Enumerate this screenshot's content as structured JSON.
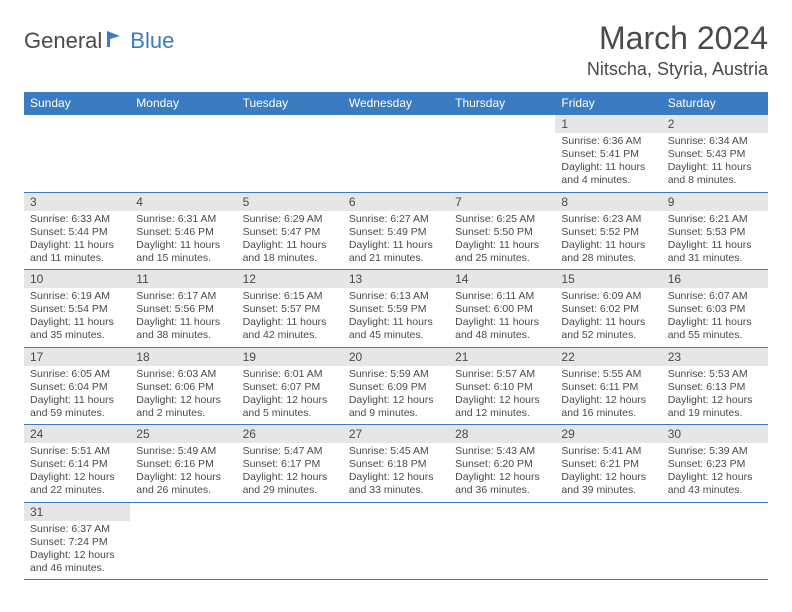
{
  "logo": {
    "general": "General",
    "blue": "Blue"
  },
  "title": "March 2024",
  "location": "Nitscha, Styria, Austria",
  "colors": {
    "header_bg": "#3b7bbf",
    "daynum_bg": "#e6e6e6",
    "text": "#4a4a4a",
    "border": "#3b7bbf"
  },
  "daynames": [
    "Sunday",
    "Monday",
    "Tuesday",
    "Wednesday",
    "Thursday",
    "Friday",
    "Saturday"
  ],
  "weeks": [
    [
      null,
      null,
      null,
      null,
      null,
      {
        "n": "1",
        "sr": "Sunrise: 6:36 AM",
        "ss": "Sunset: 5:41 PM",
        "dl": "Daylight: 11 hours and 4 minutes."
      },
      {
        "n": "2",
        "sr": "Sunrise: 6:34 AM",
        "ss": "Sunset: 5:43 PM",
        "dl": "Daylight: 11 hours and 8 minutes."
      }
    ],
    [
      {
        "n": "3",
        "sr": "Sunrise: 6:33 AM",
        "ss": "Sunset: 5:44 PM",
        "dl": "Daylight: 11 hours and 11 minutes."
      },
      {
        "n": "4",
        "sr": "Sunrise: 6:31 AM",
        "ss": "Sunset: 5:46 PM",
        "dl": "Daylight: 11 hours and 15 minutes."
      },
      {
        "n": "5",
        "sr": "Sunrise: 6:29 AM",
        "ss": "Sunset: 5:47 PM",
        "dl": "Daylight: 11 hours and 18 minutes."
      },
      {
        "n": "6",
        "sr": "Sunrise: 6:27 AM",
        "ss": "Sunset: 5:49 PM",
        "dl": "Daylight: 11 hours and 21 minutes."
      },
      {
        "n": "7",
        "sr": "Sunrise: 6:25 AM",
        "ss": "Sunset: 5:50 PM",
        "dl": "Daylight: 11 hours and 25 minutes."
      },
      {
        "n": "8",
        "sr": "Sunrise: 6:23 AM",
        "ss": "Sunset: 5:52 PM",
        "dl": "Daylight: 11 hours and 28 minutes."
      },
      {
        "n": "9",
        "sr": "Sunrise: 6:21 AM",
        "ss": "Sunset: 5:53 PM",
        "dl": "Daylight: 11 hours and 31 minutes."
      }
    ],
    [
      {
        "n": "10",
        "sr": "Sunrise: 6:19 AM",
        "ss": "Sunset: 5:54 PM",
        "dl": "Daylight: 11 hours and 35 minutes."
      },
      {
        "n": "11",
        "sr": "Sunrise: 6:17 AM",
        "ss": "Sunset: 5:56 PM",
        "dl": "Daylight: 11 hours and 38 minutes."
      },
      {
        "n": "12",
        "sr": "Sunrise: 6:15 AM",
        "ss": "Sunset: 5:57 PM",
        "dl": "Daylight: 11 hours and 42 minutes."
      },
      {
        "n": "13",
        "sr": "Sunrise: 6:13 AM",
        "ss": "Sunset: 5:59 PM",
        "dl": "Daylight: 11 hours and 45 minutes."
      },
      {
        "n": "14",
        "sr": "Sunrise: 6:11 AM",
        "ss": "Sunset: 6:00 PM",
        "dl": "Daylight: 11 hours and 48 minutes."
      },
      {
        "n": "15",
        "sr": "Sunrise: 6:09 AM",
        "ss": "Sunset: 6:02 PM",
        "dl": "Daylight: 11 hours and 52 minutes."
      },
      {
        "n": "16",
        "sr": "Sunrise: 6:07 AM",
        "ss": "Sunset: 6:03 PM",
        "dl": "Daylight: 11 hours and 55 minutes."
      }
    ],
    [
      {
        "n": "17",
        "sr": "Sunrise: 6:05 AM",
        "ss": "Sunset: 6:04 PM",
        "dl": "Daylight: 11 hours and 59 minutes."
      },
      {
        "n": "18",
        "sr": "Sunrise: 6:03 AM",
        "ss": "Sunset: 6:06 PM",
        "dl": "Daylight: 12 hours and 2 minutes."
      },
      {
        "n": "19",
        "sr": "Sunrise: 6:01 AM",
        "ss": "Sunset: 6:07 PM",
        "dl": "Daylight: 12 hours and 5 minutes."
      },
      {
        "n": "20",
        "sr": "Sunrise: 5:59 AM",
        "ss": "Sunset: 6:09 PM",
        "dl": "Daylight: 12 hours and 9 minutes."
      },
      {
        "n": "21",
        "sr": "Sunrise: 5:57 AM",
        "ss": "Sunset: 6:10 PM",
        "dl": "Daylight: 12 hours and 12 minutes."
      },
      {
        "n": "22",
        "sr": "Sunrise: 5:55 AM",
        "ss": "Sunset: 6:11 PM",
        "dl": "Daylight: 12 hours and 16 minutes."
      },
      {
        "n": "23",
        "sr": "Sunrise: 5:53 AM",
        "ss": "Sunset: 6:13 PM",
        "dl": "Daylight: 12 hours and 19 minutes."
      }
    ],
    [
      {
        "n": "24",
        "sr": "Sunrise: 5:51 AM",
        "ss": "Sunset: 6:14 PM",
        "dl": "Daylight: 12 hours and 22 minutes."
      },
      {
        "n": "25",
        "sr": "Sunrise: 5:49 AM",
        "ss": "Sunset: 6:16 PM",
        "dl": "Daylight: 12 hours and 26 minutes."
      },
      {
        "n": "26",
        "sr": "Sunrise: 5:47 AM",
        "ss": "Sunset: 6:17 PM",
        "dl": "Daylight: 12 hours and 29 minutes."
      },
      {
        "n": "27",
        "sr": "Sunrise: 5:45 AM",
        "ss": "Sunset: 6:18 PM",
        "dl": "Daylight: 12 hours and 33 minutes."
      },
      {
        "n": "28",
        "sr": "Sunrise: 5:43 AM",
        "ss": "Sunset: 6:20 PM",
        "dl": "Daylight: 12 hours and 36 minutes."
      },
      {
        "n": "29",
        "sr": "Sunrise: 5:41 AM",
        "ss": "Sunset: 6:21 PM",
        "dl": "Daylight: 12 hours and 39 minutes."
      },
      {
        "n": "30",
        "sr": "Sunrise: 5:39 AM",
        "ss": "Sunset: 6:23 PM",
        "dl": "Daylight: 12 hours and 43 minutes."
      }
    ],
    [
      {
        "n": "31",
        "sr": "Sunrise: 6:37 AM",
        "ss": "Sunset: 7:24 PM",
        "dl": "Daylight: 12 hours and 46 minutes."
      },
      null,
      null,
      null,
      null,
      null,
      null
    ]
  ]
}
